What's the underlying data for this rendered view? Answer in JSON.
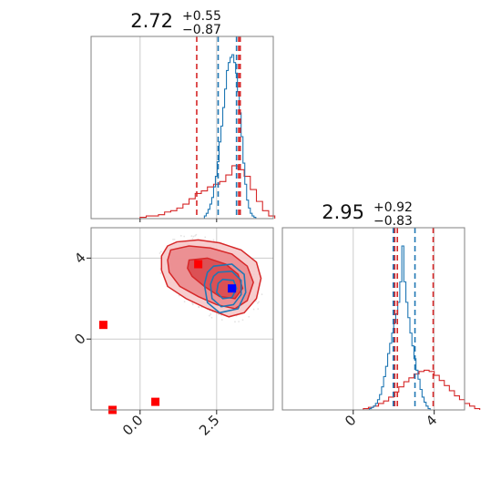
{
  "colors": {
    "red": "#d62728",
    "red_fill_dark": "#d94a4f",
    "red_fill_mid": "#ea8a8d",
    "red_fill_light": "#f6c8c9",
    "blue": "#1f77b4",
    "marker_red": "#ff0000",
    "marker_blue": "#0000ff",
    "grid": "#cccccc",
    "frame": "#808080"
  },
  "chart_data": {
    "type": "corner",
    "panels": [
      {
        "name": "marginal-param1",
        "type": "step-histogram",
        "title": {
          "median": "2.72",
          "plus": "+0.55",
          "minus": "−0.87"
        },
        "xlim": [
          -1.6,
          4.35
        ],
        "x_ticks": [
          0.0,
          2.5
        ],
        "grid": true,
        "series": [
          {
            "name": "",
            "color": "red",
            "bin_start": -1.6,
            "bin_width": 0.2,
            "values": [
              0,
              0,
              0,
              0,
              0,
              0,
              0,
              0,
              1,
              2,
              2,
              3,
              5,
              6,
              8,
              11,
              15,
              19,
              21,
              24,
              26,
              28,
              33,
              40,
              37,
              32,
              22,
              13,
              6,
              2
            ]
          },
          {
            "name": "",
            "color": "blue",
            "bin_start": 2.1,
            "bin_width": 0.06,
            "values": [
              2,
              4,
              7,
              11,
              16,
              24,
              32,
              43,
              58,
              70,
              84,
              98,
              112,
              118,
              122,
              124,
              118,
              110,
              96,
              80,
              62,
              42,
              26,
              14,
              8,
              4,
              2,
              1
            ]
          }
        ],
        "vlines": [
          {
            "x": 1.85,
            "color": "red"
          },
          {
            "x": 3.27,
            "color": "red"
          },
          {
            "x": 3.22,
            "color": "red"
          },
          {
            "x": 2.55,
            "color": "blue"
          },
          {
            "x": 3.15,
            "color": "blue"
          }
        ]
      },
      {
        "name": "marginal-param2",
        "type": "step-histogram",
        "title": {
          "median": "2.95",
          "plus": "+0.92",
          "minus": "−0.83"
        },
        "xlim": [
          -3.5,
          5.5
        ],
        "x_ticks": [
          0,
          4
        ],
        "grid": true,
        "series": [
          {
            "name": "",
            "color": "red",
            "bin_start": 0.0,
            "bin_width": 0.25,
            "values": [
              0,
              0,
              1,
              2,
              3,
              5,
              7,
              10,
              14,
              18,
              22,
              25,
              28,
              30,
              31,
              30,
              27,
              23,
              19,
              15,
              11,
              8,
              5,
              3,
              1
            ]
          },
          {
            "name": "",
            "color": "blue",
            "bin_start": 0.8,
            "bin_width": 0.1,
            "values": [
              1,
              2,
              3,
              5,
              8,
              12,
              18,
              26,
              34,
              44,
              52,
              60,
              68,
              75,
              84,
              100,
              128,
              100,
              84,
              72,
              60,
              50,
              40,
              31,
              24,
              16,
              10,
              6,
              3,
              1
            ]
          }
        ],
        "vlines": [
          {
            "x": 2.05,
            "color": "red"
          },
          {
            "x": 2.18,
            "color": "red"
          },
          {
            "x": 3.95,
            "color": "red"
          },
          {
            "x": 1.98,
            "color": "blue"
          },
          {
            "x": 3.05,
            "color": "blue"
          }
        ]
      },
      {
        "name": "joint-2d",
        "type": "scatter-contour",
        "xlim": [
          -1.6,
          4.35
        ],
        "ylim": [
          -3.5,
          5.5
        ],
        "x_ticks": [
          0.0,
          2.5
        ],
        "y_ticks": [
          0,
          4
        ],
        "grid": true,
        "red_contours": [
          {
            "level": "outer",
            "points": [
              [
                0.9,
                4.6
              ],
              [
                1.2,
                4.8
              ],
              [
                1.9,
                4.9
              ],
              [
                2.6,
                4.75
              ],
              [
                3.3,
                4.4
              ],
              [
                3.8,
                3.8
              ],
              [
                3.95,
                3.0
              ],
              [
                3.8,
                2.0
              ],
              [
                3.4,
                1.3
              ],
              [
                2.9,
                1.1
              ],
              [
                2.2,
                1.5
              ],
              [
                1.5,
                2.0
              ],
              [
                0.9,
                2.6
              ],
              [
                0.7,
                3.4
              ],
              [
                0.7,
                4.1
              ]
            ]
          },
          {
            "level": "middle",
            "points": [
              [
                1.0,
                4.4
              ],
              [
                1.6,
                4.6
              ],
              [
                2.3,
                4.5
              ],
              [
                3.0,
                4.2
              ],
              [
                3.5,
                3.6
              ],
              [
                3.7,
                2.8
              ],
              [
                3.5,
                1.9
              ],
              [
                3.1,
                1.5
              ],
              [
                2.5,
                1.7
              ],
              [
                1.9,
                2.1
              ],
              [
                1.3,
                2.6
              ],
              [
                0.95,
                3.3
              ],
              [
                0.9,
                3.9
              ]
            ]
          },
          {
            "level": "inner",
            "points": [
              [
                1.6,
                3.9
              ],
              [
                2.2,
                4.0
              ],
              [
                2.8,
                3.7
              ],
              [
                3.2,
                3.2
              ],
              [
                3.35,
                2.5
              ],
              [
                3.1,
                2.0
              ],
              [
                2.6,
                2.1
              ],
              [
                2.1,
                2.6
              ],
              [
                1.7,
                3.1
              ],
              [
                1.55,
                3.5
              ]
            ]
          }
        ],
        "blue_contours": [
          {
            "points": [
              [
                2.4,
                3.6
              ],
              [
                3.0,
                3.7
              ],
              [
                3.4,
                3.2
              ],
              [
                3.45,
                2.3
              ],
              [
                3.2,
                1.5
              ],
              [
                2.6,
                1.3
              ],
              [
                2.2,
                1.8
              ],
              [
                2.1,
                2.7
              ],
              [
                2.2,
                3.3
              ]
            ]
          },
          {
            "points": [
              [
                2.55,
                3.3
              ],
              [
                3.0,
                3.35
              ],
              [
                3.3,
                2.9
              ],
              [
                3.3,
                2.2
              ],
              [
                3.05,
                1.7
              ],
              [
                2.65,
                1.6
              ],
              [
                2.35,
                2.0
              ],
              [
                2.3,
                2.7
              ],
              [
                2.4,
                3.1
              ]
            ]
          },
          {
            "points": [
              [
                2.7,
                2.95
              ],
              [
                3.05,
                2.9
              ],
              [
                3.15,
                2.5
              ],
              [
                3.0,
                2.05
              ],
              [
                2.7,
                2.0
              ],
              [
                2.5,
                2.3
              ],
              [
                2.55,
                2.75
              ]
            ]
          }
        ],
        "markers": [
          {
            "x": 1.9,
            "y": 3.7,
            "color": "marker_red"
          },
          {
            "x": 3.0,
            "y": 2.5,
            "color": "marker_blue"
          },
          {
            "x": -1.2,
            "y": 0.7,
            "color": "marker_red"
          },
          {
            "x": 0.5,
            "y": -3.1,
            "color": "marker_red"
          },
          {
            "x": -0.9,
            "y": -3.5,
            "color": "marker_red"
          }
        ]
      }
    ]
  }
}
